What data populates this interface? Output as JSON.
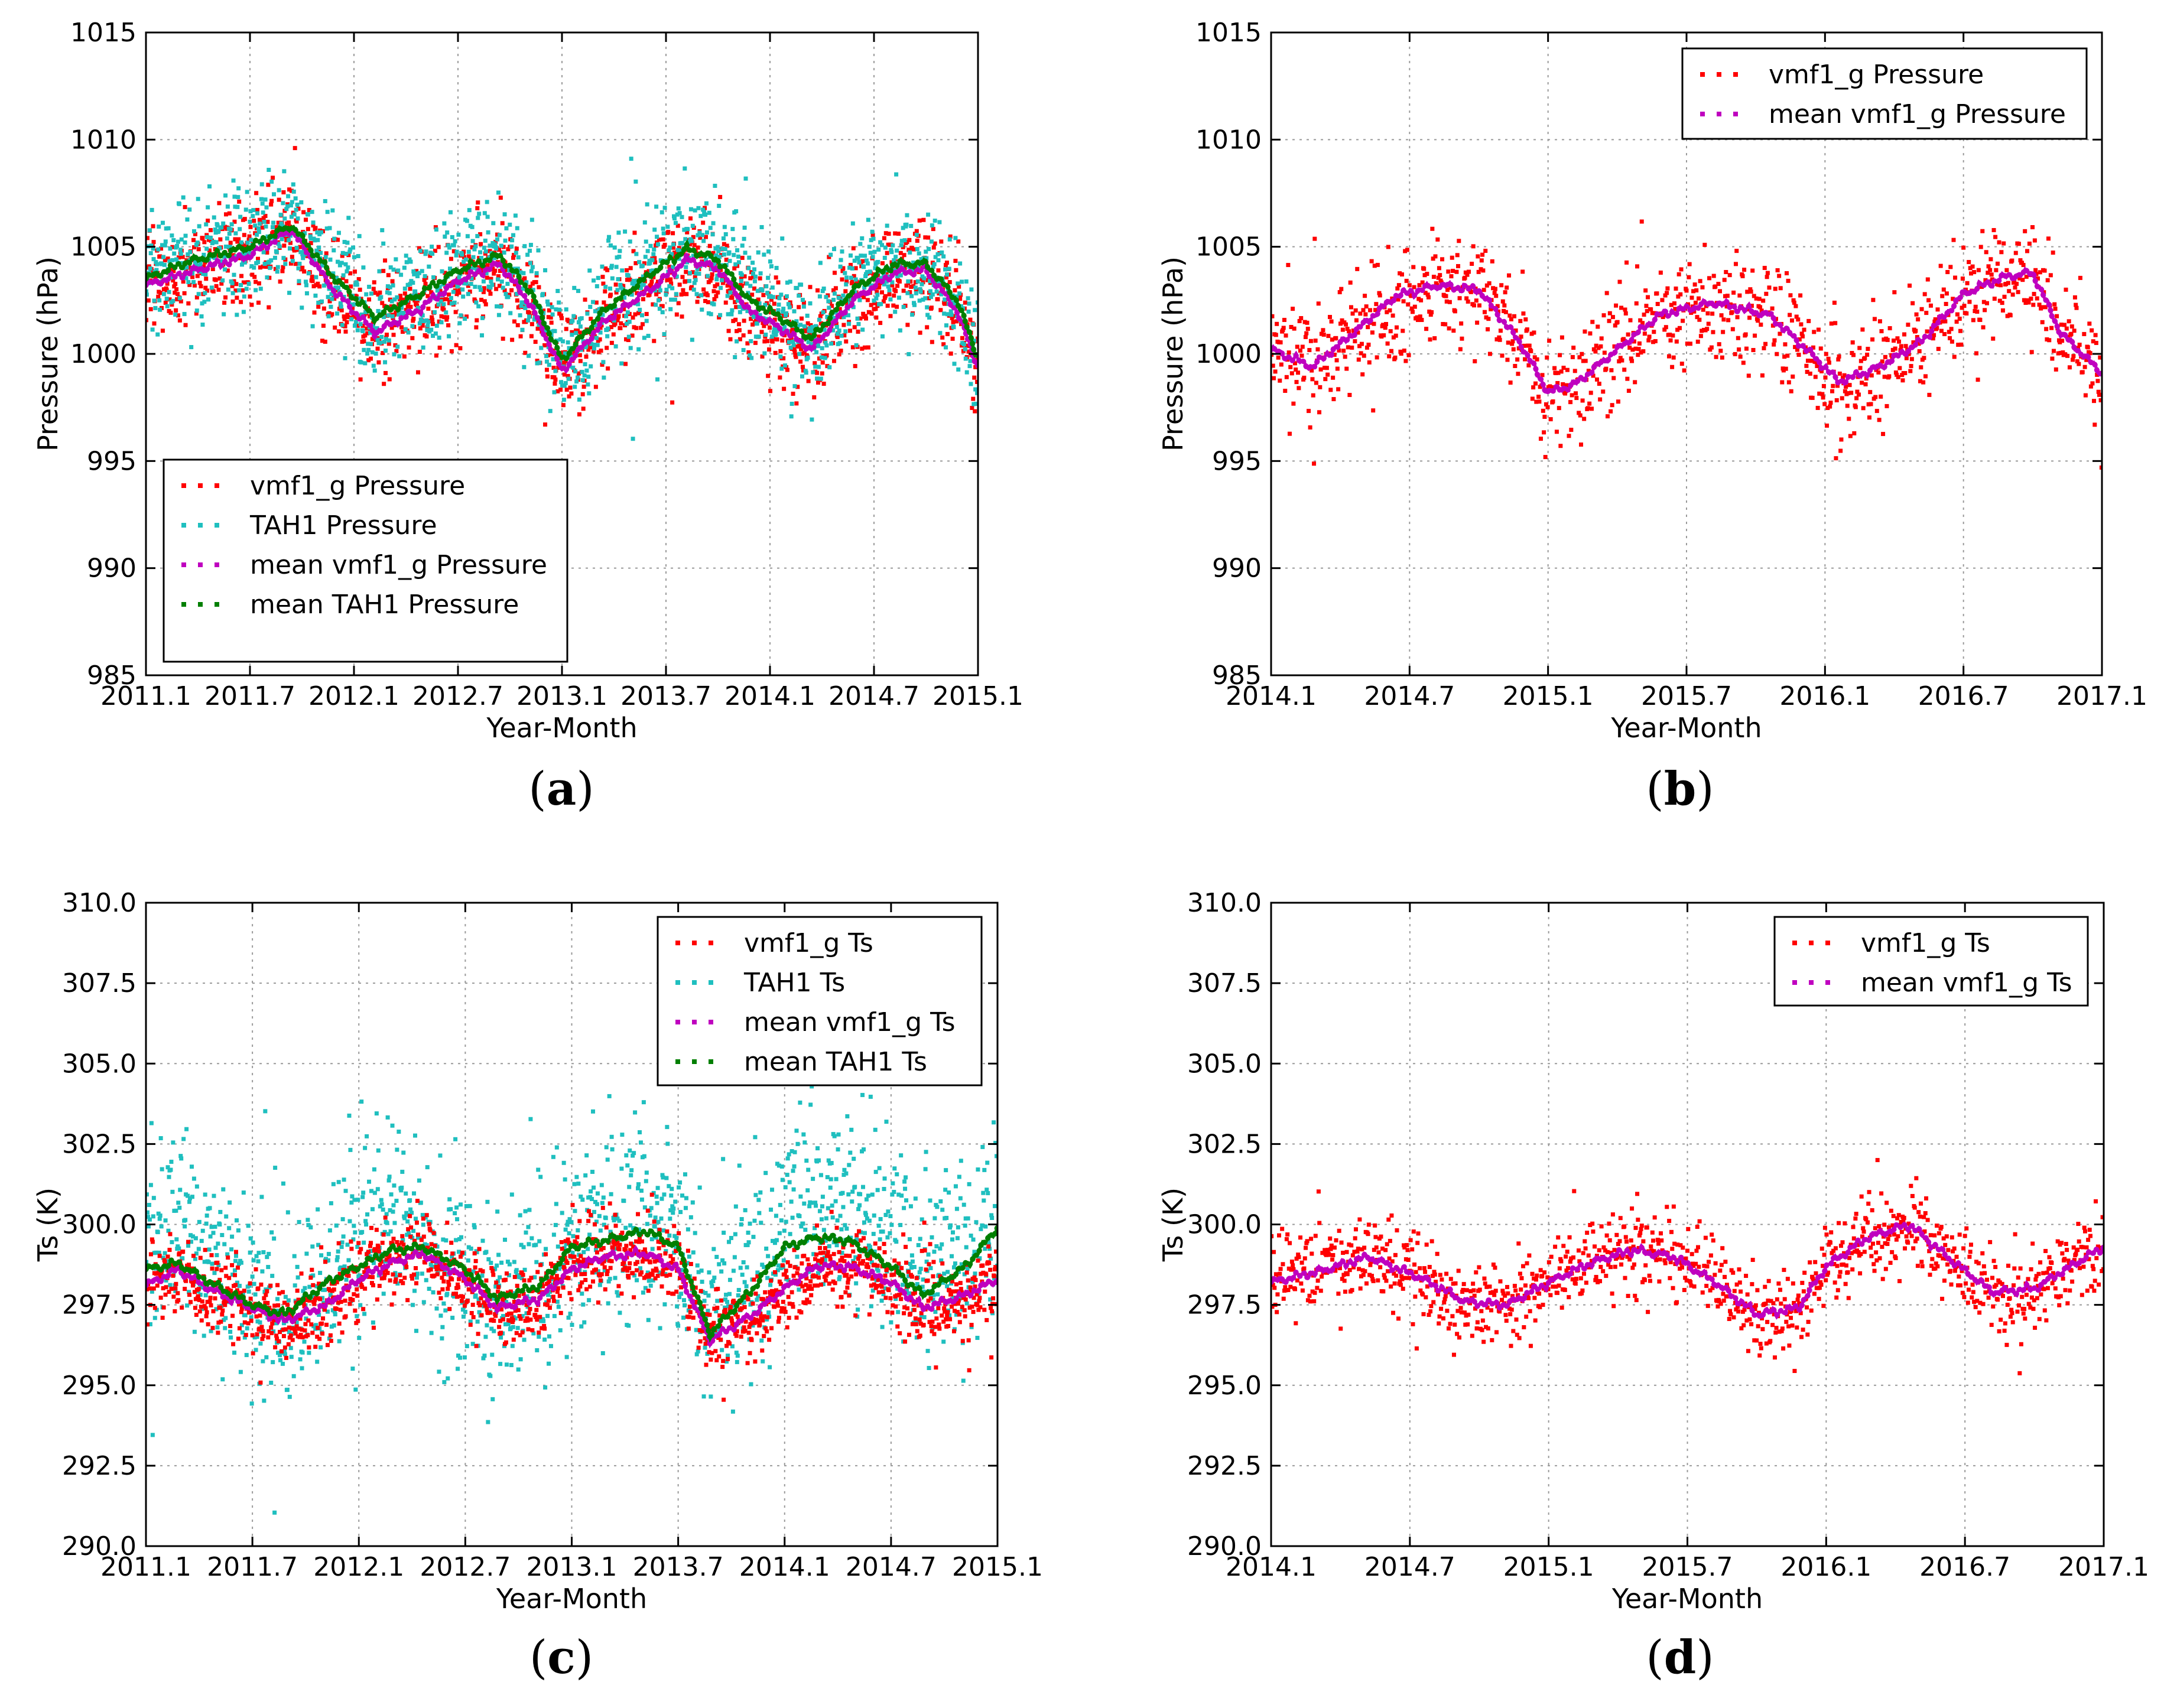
{
  "figure": {
    "captions": [
      {
        "open": "(",
        "letter": "a",
        "close": ")"
      },
      {
        "open": "(",
        "letter": "b",
        "close": ")"
      },
      {
        "open": "(",
        "letter": "c",
        "close": ")"
      },
      {
        "open": "(",
        "letter": "d",
        "close": ")"
      }
    ]
  },
  "colors": {
    "vmf": "#ff0000",
    "tah": "#1fbfbf",
    "mean_vmf": "#bf00bf",
    "mean_tah": "#007f00",
    "grid": "#9a9a9a",
    "axis": "#000000"
  },
  "chart_data": [
    {
      "id": "a",
      "type": "scatter",
      "title": "",
      "xlabel": "Year-Month",
      "ylabel": "Pressure (hPa)",
      "xlim": [
        2011.0,
        2015.0
      ],
      "ylim": [
        985,
        1015
      ],
      "xticks": [
        2011.0,
        2011.5,
        2012.0,
        2012.5,
        2013.0,
        2013.5,
        2014.0,
        2014.5,
        2015.0
      ],
      "xtick_labels": [
        "2011.1",
        "2011.7",
        "2012.1",
        "2012.7",
        "2013.1",
        "2013.7",
        "2014.1",
        "2014.7",
        "2015.1"
      ],
      "yticks": [
        985,
        990,
        995,
        1000,
        1005,
        1010,
        1015
      ],
      "ytick_labels": [
        "985",
        "990",
        "995",
        "1000",
        "1005",
        "1010",
        "1015"
      ],
      "grid": true,
      "legend_position": "bottom-left",
      "series": [
        {
          "name": "vmf1_g Pressure",
          "kind": "scatter",
          "color": "vmf",
          "start": 2011.0,
          "end": 2015.0,
          "scatter_amp": 2.2,
          "seed": 11,
          "x": [
            2011.0,
            2011.2,
            2011.5,
            2011.7,
            2011.9,
            2012.1,
            2012.3,
            2012.5,
            2012.7,
            2012.85,
            2013.0,
            2013.2,
            2013.45,
            2013.6,
            2013.75,
            2013.9,
            2014.05,
            2014.2,
            2014.4,
            2014.6,
            2014.75,
            2014.9,
            2015.0
          ],
          "y": [
            1003.2,
            1003.8,
            1004.6,
            1005.8,
            1003.0,
            1001.0,
            1002.0,
            1003.4,
            1004.2,
            1002.3,
            999.2,
            1001.5,
            1003.2,
            1004.4,
            1004.0,
            1002.0,
            1001.2,
            1000.2,
            1002.5,
            1003.8,
            1003.9,
            1002.0,
            999.4
          ]
        },
        {
          "name": "TAH1 Pressure",
          "kind": "scatter",
          "color": "tah",
          "start": 2011.0,
          "end": 2015.0,
          "scatter_amp": 2.6,
          "seed": 23,
          "x": [
            2011.0,
            2011.2,
            2011.5,
            2011.7,
            2011.9,
            2012.1,
            2012.3,
            2012.5,
            2012.7,
            2012.85,
            2013.0,
            2013.2,
            2013.45,
            2013.6,
            2013.75,
            2013.9,
            2014.05,
            2014.2,
            2014.4,
            2014.6,
            2014.75,
            2014.9,
            2015.0
          ],
          "y": [
            1003.5,
            1004.3,
            1005.0,
            1006.0,
            1003.6,
            1001.7,
            1002.7,
            1003.9,
            1004.6,
            1002.9,
            999.7,
            1002.0,
            1003.9,
            1004.9,
            1004.4,
            1002.5,
            1001.7,
            1000.7,
            1003.0,
            1004.2,
            1004.2,
            1002.5,
            999.8
          ]
        },
        {
          "name": "mean vmf1_g Pressure",
          "kind": "line",
          "color": "mean_vmf",
          "x": [
            2011.0,
            2011.2,
            2011.5,
            2011.7,
            2011.9,
            2012.1,
            2012.3,
            2012.5,
            2012.7,
            2012.85,
            2013.0,
            2013.2,
            2013.45,
            2013.6,
            2013.75,
            2013.9,
            2014.05,
            2014.2,
            2014.4,
            2014.6,
            2014.75,
            2014.9,
            2015.0
          ],
          "y": [
            1003.2,
            1003.8,
            1004.6,
            1005.8,
            1003.0,
            1001.0,
            1002.0,
            1003.4,
            1004.2,
            1002.3,
            999.2,
            1001.5,
            1003.2,
            1004.4,
            1004.0,
            1002.0,
            1001.2,
            1000.2,
            1002.5,
            1003.8,
            1003.9,
            1002.0,
            999.4
          ]
        },
        {
          "name": "mean TAH1 Pressure",
          "kind": "line",
          "color": "mean_tah",
          "x": [
            2011.0,
            2011.2,
            2011.5,
            2011.7,
            2011.9,
            2012.1,
            2012.3,
            2012.5,
            2012.7,
            2012.85,
            2013.0,
            2013.2,
            2013.45,
            2013.6,
            2013.75,
            2013.9,
            2014.05,
            2014.2,
            2014.4,
            2014.6,
            2014.75,
            2014.9,
            2015.0
          ],
          "y": [
            1003.5,
            1004.3,
            1005.0,
            1006.0,
            1003.6,
            1001.7,
            1002.7,
            1003.9,
            1004.6,
            1002.9,
            999.7,
            1002.0,
            1003.9,
            1004.9,
            1004.4,
            1002.5,
            1001.7,
            1000.7,
            1003.0,
            1004.2,
            1004.2,
            1002.5,
            999.8
          ]
        }
      ]
    },
    {
      "id": "b",
      "type": "scatter",
      "title": "",
      "xlabel": "Year-Month",
      "ylabel": "Pressure (hPa)",
      "xlim": [
        2014.0,
        2017.0
      ],
      "ylim": [
        985,
        1015
      ],
      "xticks": [
        2014.0,
        2014.5,
        2015.0,
        2015.5,
        2016.0,
        2016.5,
        2017.0
      ],
      "xtick_labels": [
        "2014.1",
        "2014.7",
        "2015.1",
        "2015.7",
        "2016.1",
        "2016.7",
        "2017.1"
      ],
      "yticks": [
        985,
        990,
        995,
        1000,
        1005,
        1010,
        1015
      ],
      "ytick_labels": [
        "985",
        "990",
        "995",
        "1000",
        "1005",
        "1010",
        "1015"
      ],
      "grid": true,
      "legend_position": "top-right",
      "series": [
        {
          "name": "vmf1_g Pressure",
          "kind": "scatter",
          "color": "vmf",
          "start": 2014.0,
          "end": 2017.0,
          "scatter_amp": 2.4,
          "seed": 37,
          "x": [
            2014.0,
            2014.15,
            2014.3,
            2014.45,
            2014.6,
            2014.75,
            2014.9,
            2015.0,
            2015.1,
            2015.25,
            2015.4,
            2015.6,
            2015.8,
            2015.95,
            2016.05,
            2016.2,
            2016.35,
            2016.5,
            2016.65,
            2016.75,
            2016.85,
            2017.0
          ],
          "y": [
            1000.2,
            999.4,
            1001.0,
            1002.7,
            1003.2,
            1003.0,
            1000.5,
            998.2,
            998.6,
            1000.2,
            1001.8,
            1002.4,
            1001.8,
            1000.0,
            998.7,
            999.4,
            1000.6,
            1002.8,
            1003.6,
            1003.8,
            1001.0,
            999.1
          ]
        },
        {
          "name": "mean vmf1_g Pressure",
          "kind": "line",
          "color": "mean_vmf",
          "x": [
            2014.0,
            2014.15,
            2014.3,
            2014.45,
            2014.6,
            2014.75,
            2014.9,
            2015.0,
            2015.1,
            2015.25,
            2015.4,
            2015.6,
            2015.8,
            2015.95,
            2016.05,
            2016.2,
            2016.35,
            2016.5,
            2016.65,
            2016.75,
            2016.85,
            2017.0
          ],
          "y": [
            1000.2,
            999.4,
            1001.0,
            1002.7,
            1003.2,
            1003.0,
            1000.5,
            998.2,
            998.6,
            1000.2,
            1001.8,
            1002.4,
            1001.8,
            1000.0,
            998.7,
            999.4,
            1000.6,
            1002.8,
            1003.6,
            1003.8,
            1001.0,
            999.1
          ]
        }
      ]
    },
    {
      "id": "c",
      "type": "scatter",
      "title": "",
      "xlabel": "Year-Month",
      "ylabel": "Ts (K)",
      "xlim": [
        2011.0,
        2015.0
      ],
      "ylim": [
        290.0,
        310.0
      ],
      "xticks": [
        2011.0,
        2011.5,
        2012.0,
        2012.5,
        2013.0,
        2013.5,
        2014.0,
        2014.5,
        2015.0
      ],
      "xtick_labels": [
        "2011.1",
        "2011.7",
        "2012.1",
        "2012.7",
        "2013.1",
        "2013.7",
        "2014.1",
        "2014.7",
        "2015.1"
      ],
      "yticks": [
        290.0,
        292.5,
        295.0,
        297.5,
        300.0,
        302.5,
        305.0,
        307.5,
        310.0
      ],
      "ytick_labels": [
        "290.0",
        "292.5",
        "295.0",
        "297.5",
        "300.0",
        "302.5",
        "305.0",
        "307.5",
        "310.0"
      ],
      "grid": true,
      "legend_position": "top-right",
      "series": [
        {
          "name": "TAH1 Ts",
          "kind": "scatter",
          "color": "tah",
          "start": 2011.0,
          "end": 2015.0,
          "scatter_amp": 2.8,
          "seed": 53,
          "x": [
            2011.0,
            2011.15,
            2011.3,
            2011.5,
            2011.65,
            2011.85,
            2012.0,
            2012.15,
            2012.3,
            2012.5,
            2012.65,
            2012.85,
            2013.0,
            2013.15,
            2013.35,
            2013.5,
            2013.65,
            2013.85,
            2014.0,
            2014.15,
            2014.3,
            2014.5,
            2014.65,
            2014.85,
            2015.0
          ],
          "y": [
            299.8,
            300.0,
            299.0,
            298.0,
            297.3,
            298.4,
            299.6,
            300.3,
            299.6,
            298.4,
            297.6,
            298.2,
            299.5,
            300.0,
            300.3,
            299.4,
            297.0,
            298.6,
            300.1,
            300.6,
            300.5,
            299.6,
            298.4,
            299.3,
            300.2
          ]
        },
        {
          "name": "vmf1_g Ts",
          "kind": "scatter",
          "color": "vmf",
          "start": 2011.0,
          "end": 2015.0,
          "scatter_amp": 1.1,
          "seed": 71,
          "x": [
            2011.0,
            2011.15,
            2011.3,
            2011.5,
            2011.65,
            2011.85,
            2012.0,
            2012.15,
            2012.3,
            2012.5,
            2012.65,
            2012.85,
            2013.0,
            2013.15,
            2013.35,
            2013.5,
            2013.65,
            2013.85,
            2014.0,
            2014.15,
            2014.3,
            2014.5,
            2014.65,
            2014.85,
            2015.0
          ],
          "y": [
            298.1,
            298.6,
            298.0,
            297.4,
            297.0,
            297.5,
            298.3,
            298.8,
            299.1,
            298.3,
            297.4,
            297.7,
            298.6,
            299.0,
            299.1,
            298.6,
            296.4,
            297.2,
            298.0,
            298.7,
            298.7,
            298.2,
            297.4,
            297.8,
            298.3
          ]
        },
        {
          "name": "mean vmf1_g Ts",
          "kind": "line",
          "color": "mean_vmf",
          "x": [
            2011.0,
            2011.15,
            2011.3,
            2011.5,
            2011.65,
            2011.85,
            2012.0,
            2012.15,
            2012.3,
            2012.5,
            2012.65,
            2012.85,
            2013.0,
            2013.15,
            2013.35,
            2013.5,
            2013.65,
            2013.85,
            2014.0,
            2014.15,
            2014.3,
            2014.5,
            2014.65,
            2014.85,
            2015.0
          ],
          "y": [
            298.1,
            298.6,
            298.0,
            297.4,
            297.0,
            297.5,
            298.3,
            298.8,
            299.1,
            298.3,
            297.4,
            297.7,
            298.6,
            299.0,
            299.1,
            298.6,
            296.4,
            297.2,
            298.0,
            298.7,
            298.7,
            298.2,
            297.4,
            297.8,
            298.3
          ]
        },
        {
          "name": "mean TAH1 Ts",
          "kind": "line",
          "color": "mean_tah",
          "x": [
            2011.0,
            2011.15,
            2011.3,
            2011.5,
            2011.65,
            2011.85,
            2012.0,
            2012.15,
            2012.3,
            2012.5,
            2012.65,
            2012.85,
            2013.0,
            2013.15,
            2013.35,
            2013.5,
            2013.65,
            2013.85,
            2014.0,
            2014.15,
            2014.3,
            2014.5,
            2014.65,
            2014.85,
            2015.0
          ],
          "y": [
            298.6,
            298.8,
            298.2,
            297.5,
            297.2,
            298.2,
            298.7,
            299.2,
            299.3,
            298.6,
            297.7,
            298.1,
            299.3,
            299.5,
            299.8,
            299.3,
            296.6,
            298.0,
            299.3,
            299.6,
            299.5,
            298.7,
            297.8,
            298.7,
            299.9
          ]
        }
      ]
    },
    {
      "id": "d",
      "type": "scatter",
      "title": "",
      "xlabel": "Year-Month",
      "ylabel": "Ts (K)",
      "xlim": [
        2014.0,
        2017.0
      ],
      "ylim": [
        290.0,
        310.0
      ],
      "xticks": [
        2014.0,
        2014.5,
        2015.0,
        2015.5,
        2016.0,
        2016.5,
        2017.0
      ],
      "xtick_labels": [
        "2014.1",
        "2014.7",
        "2015.1",
        "2015.7",
        "2016.1",
        "2016.7",
        "2017.1"
      ],
      "yticks": [
        290.0,
        292.5,
        295.0,
        297.5,
        300.0,
        302.5,
        305.0,
        307.5,
        310.0
      ],
      "ytick_labels": [
        "290.0",
        "292.5",
        "295.0",
        "297.5",
        "300.0",
        "302.5",
        "305.0",
        "307.5",
        "310.0"
      ],
      "grid": true,
      "legend_position": "top-right",
      "series": [
        {
          "name": "vmf1_g Ts",
          "kind": "scatter",
          "color": "vmf",
          "start": 2014.0,
          "end": 2017.0,
          "scatter_amp": 1.2,
          "seed": 89,
          "x": [
            2014.0,
            2014.2,
            2014.35,
            2014.55,
            2014.7,
            2014.85,
            2015.0,
            2015.15,
            2015.3,
            2015.45,
            2015.6,
            2015.75,
            2015.9,
            2016.0,
            2016.15,
            2016.3,
            2016.45,
            2016.6,
            2016.75,
            2016.9,
            2017.0
          ],
          "y": [
            298.2,
            298.6,
            299.0,
            298.3,
            297.6,
            297.5,
            298.2,
            298.8,
            299.2,
            299.0,
            298.2,
            297.2,
            297.4,
            298.7,
            299.6,
            300.0,
            298.9,
            297.9,
            298.0,
            298.8,
            299.3
          ]
        },
        {
          "name": "mean vmf1_g Ts",
          "kind": "line",
          "color": "mean_vmf",
          "x": [
            2014.0,
            2014.2,
            2014.35,
            2014.55,
            2014.7,
            2014.85,
            2015.0,
            2015.15,
            2015.3,
            2015.45,
            2015.6,
            2015.75,
            2015.9,
            2016.0,
            2016.15,
            2016.3,
            2016.45,
            2016.6,
            2016.75,
            2016.9,
            2017.0
          ],
          "y": [
            298.2,
            298.6,
            299.0,
            298.3,
            297.6,
            297.5,
            298.2,
            298.8,
            299.2,
            299.0,
            298.2,
            297.2,
            297.4,
            298.7,
            299.6,
            300.0,
            298.9,
            297.9,
            298.0,
            298.8,
            299.3
          ]
        }
      ]
    }
  ]
}
